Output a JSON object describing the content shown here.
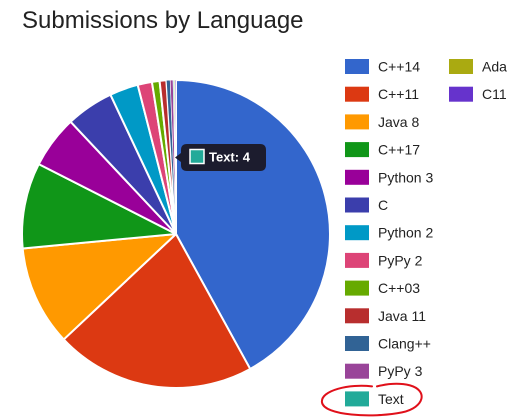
{
  "chart_data": {
    "type": "pie",
    "title": "Submissions by Language",
    "labels": [
      "C++14",
      "C++11",
      "Java 8",
      "C++17",
      "Python 3",
      "C",
      "Python 2",
      "PyPy 2",
      "C++03",
      "Java 11",
      "Clang++",
      "PyPy 3",
      "Text",
      "Ada",
      "C11"
    ],
    "values": [
      42.0,
      21.0,
      10.5,
      9.0,
      5.5,
      5.0,
      3.0,
      1.5,
      0.8,
      0.7,
      0.4,
      0.3,
      0.1,
      0.1,
      0.1
    ],
    "colors": [
      "#3366cc",
      "#dc3912",
      "#ff9900",
      "#109618",
      "#990099",
      "#3b3eac",
      "#0099c6",
      "#dd4477",
      "#66aa00",
      "#b82e2e",
      "#316395",
      "#994499",
      "#22aa99",
      "#aaaa11",
      "#6633cc"
    ],
    "legend_position": "right",
    "tooltip": {
      "text": "Text: 4",
      "color": "#22aa99"
    },
    "highlight": {
      "series": "Text",
      "color": "#e0101a",
      "style": "hand-drawn circle"
    }
  }
}
